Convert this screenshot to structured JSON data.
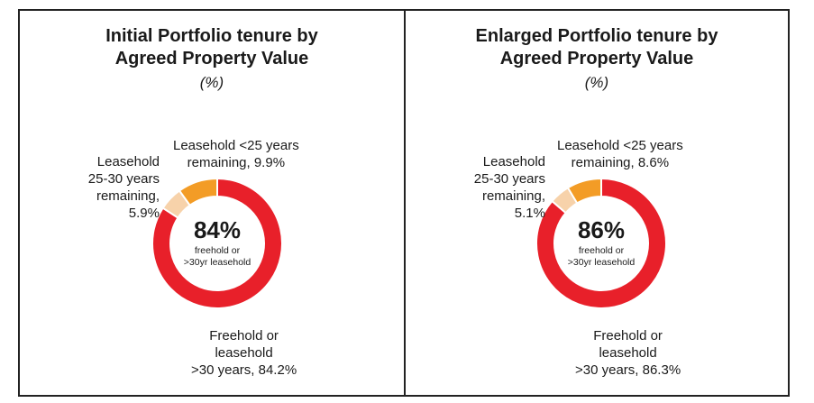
{
  "colors": {
    "freehold": "#e8202a",
    "leasehold_lt25": "#f39c26",
    "leasehold_25_30": "#f7d2aa"
  },
  "chart_data": [
    {
      "type": "pie",
      "donut": true,
      "title_lines": [
        "Initial Portfolio tenure by",
        "Agreed Property Value"
      ],
      "unit": "(%)",
      "center": {
        "value": "84%",
        "line1": "freehold or",
        "line2": ">30yr leasehold"
      },
      "slices": [
        {
          "key": "freehold",
          "value": 84.2,
          "label_lines": [
            "Freehold or",
            "leasehold",
            ">30 years, 84.2%"
          ]
        },
        {
          "key": "leasehold_25_30",
          "value": 5.9,
          "label_lines": [
            "Leasehold",
            "25-30 years",
            "remaining,",
            "5.9%"
          ]
        },
        {
          "key": "leasehold_lt25",
          "value": 9.9,
          "label_lines": [
            "Leasehold <25 years",
            "remaining, 9.9%"
          ]
        }
      ]
    },
    {
      "type": "pie",
      "donut": true,
      "title_lines": [
        "Enlarged Portfolio tenure by",
        "Agreed Property Value"
      ],
      "unit": "(%)",
      "center": {
        "value": "86%",
        "line1": "freehold or",
        "line2": ">30yr leasehold"
      },
      "slices": [
        {
          "key": "freehold",
          "value": 86.3,
          "label_lines": [
            "Freehold or",
            "leasehold",
            ">30 years, 86.3%"
          ]
        },
        {
          "key": "leasehold_25_30",
          "value": 5.1,
          "label_lines": [
            "Leasehold",
            "25-30 years",
            "remaining,",
            "5.1%"
          ]
        },
        {
          "key": "leasehold_lt25",
          "value": 8.6,
          "label_lines": [
            "Leasehold <25 years",
            "remaining, 8.6%"
          ]
        }
      ]
    }
  ]
}
